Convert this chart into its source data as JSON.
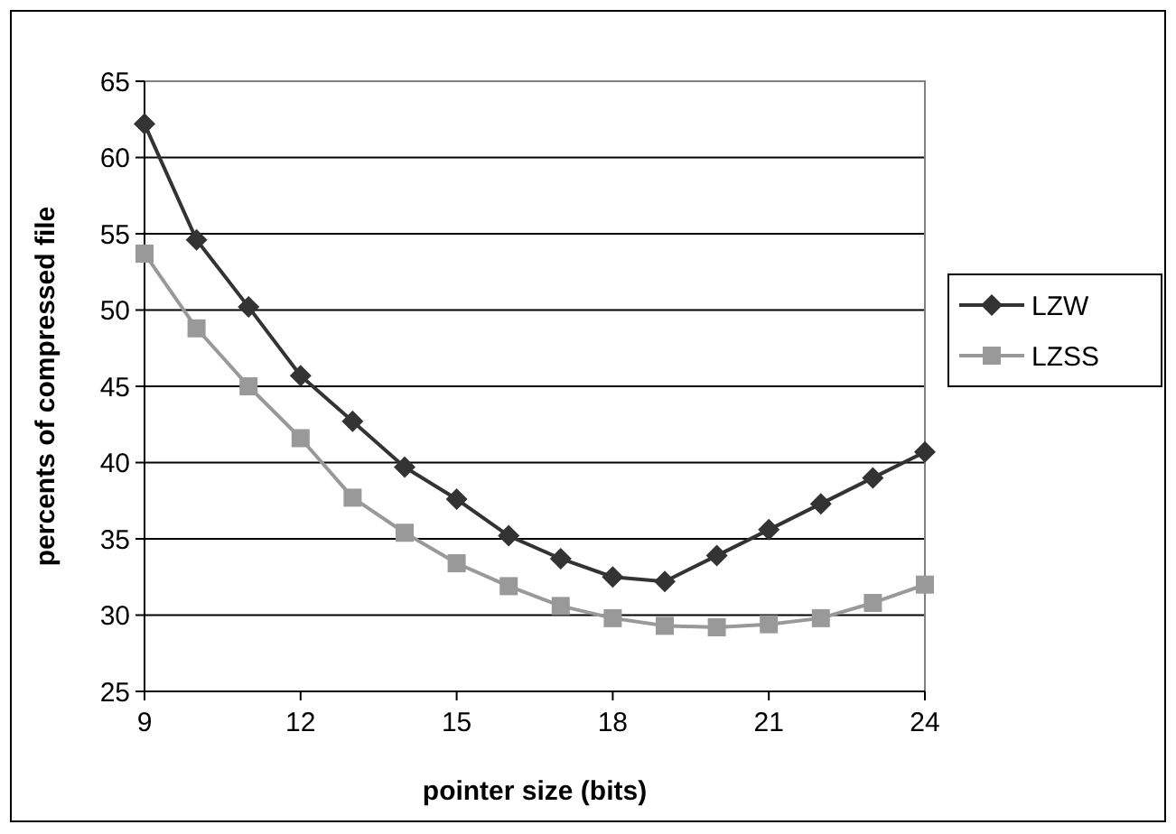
{
  "chart_data": {
    "type": "line",
    "xlabel": "pointer size (bits)",
    "ylabel": "percents of compressed file",
    "x": [
      9,
      10,
      11,
      12,
      13,
      14,
      15,
      16,
      17,
      18,
      19,
      20,
      21,
      22,
      23,
      24
    ],
    "series": [
      {
        "name": "LZW",
        "color": "#333333",
        "marker": "diamond",
        "values": [
          62.2,
          54.6,
          50.2,
          45.7,
          42.7,
          39.7,
          37.6,
          35.2,
          33.7,
          32.5,
          32.2,
          33.9,
          35.6,
          37.3,
          39.0,
          40.7
        ]
      },
      {
        "name": "LZSS",
        "color": "#999999",
        "marker": "square",
        "values": [
          53.7,
          48.8,
          45.0,
          41.6,
          37.7,
          35.4,
          33.4,
          31.9,
          30.6,
          29.8,
          29.3,
          29.2,
          29.4,
          29.8,
          30.8,
          32.0
        ]
      }
    ],
    "xlim": [
      9,
      24
    ],
    "xticks": [
      9,
      12,
      15,
      18,
      21,
      24
    ],
    "ylim": [
      25,
      65
    ],
    "yticks": [
      25,
      30,
      35,
      40,
      45,
      50,
      55,
      60,
      65
    ],
    "grid": "y",
    "legend": "right"
  }
}
